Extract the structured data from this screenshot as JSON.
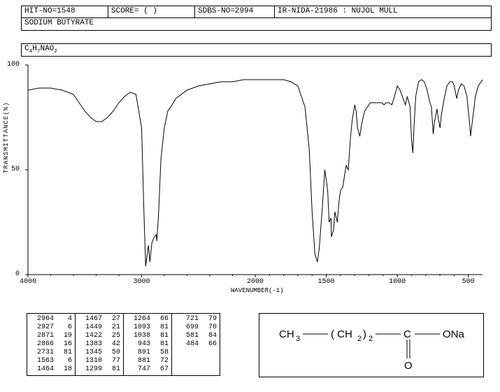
{
  "header": {
    "hit_no": "HIT-NO=1548",
    "score": "SCORE=   (   )",
    "sdbs": "SDBS-NO=2994",
    "ir": "IR-NIDA-21986 : NUJOL MULL"
  },
  "compound_name": "SODIUM BUTYRATE",
  "formula_html": "C<sub>4</sub>H<sub>7</sub>NAO<sub>2</sub>",
  "chart": {
    "type": "line",
    "background_color": "#ffffff",
    "line_color": "#000000",
    "line_width": 1,
    "xlabel": "WAVENUMBER(-1)",
    "ylabel": "TRANSMITTANCE(%)",
    "xlim": [
      4000,
      400
    ],
    "ylim": [
      0,
      100
    ],
    "xticks": [
      4000,
      3000,
      2000,
      1500,
      1000,
      500
    ],
    "yticks": [
      0,
      50,
      100
    ],
    "tick_fontsize": 10,
    "label_fontsize": 9,
    "spectrum": [
      [
        4000,
        88
      ],
      [
        3900,
        89
      ],
      [
        3800,
        89
      ],
      [
        3700,
        88
      ],
      [
        3600,
        86
      ],
      [
        3550,
        82
      ],
      [
        3500,
        78
      ],
      [
        3450,
        75
      ],
      [
        3400,
        73
      ],
      [
        3350,
        73
      ],
      [
        3300,
        75
      ],
      [
        3250,
        78
      ],
      [
        3200,
        82
      ],
      [
        3150,
        85
      ],
      [
        3100,
        87
      ],
      [
        3050,
        86
      ],
      [
        3000,
        70
      ],
      [
        2980,
        30
      ],
      [
        2964,
        4
      ],
      [
        2950,
        10
      ],
      [
        2940,
        14
      ],
      [
        2927,
        6
      ],
      [
        2910,
        15
      ],
      [
        2890,
        18
      ],
      [
        2871,
        19
      ],
      [
        2866,
        16
      ],
      [
        2850,
        30
      ],
      [
        2830,
        55
      ],
      [
        2800,
        70
      ],
      [
        2770,
        78
      ],
      [
        2731,
        81
      ],
      [
        2700,
        84
      ],
      [
        2600,
        88
      ],
      [
        2500,
        90
      ],
      [
        2400,
        91
      ],
      [
        2300,
        92
      ],
      [
        2200,
        92
      ],
      [
        2100,
        93
      ],
      [
        2000,
        93
      ],
      [
        1900,
        93
      ],
      [
        1800,
        93
      ],
      [
        1750,
        92
      ],
      [
        1700,
        90
      ],
      [
        1650,
        80
      ],
      [
        1620,
        60
      ],
      [
        1600,
        30
      ],
      [
        1580,
        10
      ],
      [
        1563,
        6
      ],
      [
        1550,
        12
      ],
      [
        1530,
        30
      ],
      [
        1510,
        50
      ],
      [
        1490,
        40
      ],
      [
        1480,
        25
      ],
      [
        1467,
        27
      ],
      [
        1464,
        18
      ],
      [
        1455,
        20
      ],
      [
        1449,
        21
      ],
      [
        1440,
        30
      ],
      [
        1422,
        25
      ],
      [
        1410,
        35
      ],
      [
        1400,
        40
      ],
      [
        1383,
        42
      ],
      [
        1370,
        48
      ],
      [
        1360,
        52
      ],
      [
        1345,
        50
      ],
      [
        1330,
        65
      ],
      [
        1320,
        72
      ],
      [
        1310,
        77
      ],
      [
        1299,
        81
      ],
      [
        1290,
        78
      ],
      [
        1280,
        70
      ],
      [
        1264,
        66
      ],
      [
        1250,
        72
      ],
      [
        1230,
        78
      ],
      [
        1210,
        80
      ],
      [
        1190,
        82
      ],
      [
        1170,
        82
      ],
      [
        1150,
        82
      ],
      [
        1130,
        82
      ],
      [
        1110,
        82
      ],
      [
        1093,
        81
      ],
      [
        1080,
        82
      ],
      [
        1060,
        82
      ],
      [
        1038,
        81
      ],
      [
        1020,
        85
      ],
      [
        1000,
        90
      ],
      [
        980,
        88
      ],
      [
        960,
        84
      ],
      [
        943,
        81
      ],
      [
        930,
        85
      ],
      [
        910,
        80
      ],
      [
        900,
        65
      ],
      [
        891,
        58
      ],
      [
        881,
        72
      ],
      [
        870,
        85
      ],
      [
        850,
        92
      ],
      [
        830,
        93
      ],
      [
        810,
        92
      ],
      [
        790,
        88
      ],
      [
        770,
        82
      ],
      [
        760,
        80
      ],
      [
        747,
        67
      ],
      [
        740,
        72
      ],
      [
        721,
        79
      ],
      [
        710,
        74
      ],
      [
        699,
        70
      ],
      [
        690,
        76
      ],
      [
        670,
        84
      ],
      [
        650,
        90
      ],
      [
        630,
        92
      ],
      [
        610,
        92
      ],
      [
        600,
        90
      ],
      [
        581,
        84
      ],
      [
        570,
        88
      ],
      [
        550,
        91
      ],
      [
        530,
        90
      ],
      [
        510,
        85
      ],
      [
        500,
        78
      ],
      [
        490,
        72
      ],
      [
        484,
        66
      ],
      [
        470,
        74
      ],
      [
        450,
        85
      ],
      [
        430,
        90
      ],
      [
        410,
        92
      ],
      [
        400,
        93
      ]
    ]
  },
  "peak_table": {
    "columns": 4,
    "font_size": 10,
    "data": [
      [
        [
          2964,
          4
        ],
        [
          2927,
          6
        ],
        [
          2871,
          19
        ],
        [
          2866,
          16
        ],
        [
          2731,
          81
        ],
        [
          1563,
          6
        ],
        [
          1464,
          18
        ]
      ],
      [
        [
          1467,
          27
        ],
        [
          1449,
          21
        ],
        [
          1422,
          25
        ],
        [
          1383,
          42
        ],
        [
          1345,
          50
        ],
        [
          1310,
          77
        ],
        [
          1299,
          81
        ]
      ],
      [
        [
          1264,
          66
        ],
        [
          1093,
          81
        ],
        [
          1038,
          81
        ],
        [
          943,
          81
        ],
        [
          891,
          58
        ],
        [
          881,
          72
        ],
        [
          747,
          67
        ]
      ],
      [
        [
          721,
          79
        ],
        [
          699,
          70
        ],
        [
          581,
          84
        ],
        [
          484,
          66
        ]
      ]
    ]
  },
  "structure": {
    "text_parts": [
      "CH",
      "3",
      "( CH",
      "2",
      ")",
      "2",
      "C",
      "ONa",
      "O"
    ],
    "font_size": 15,
    "line_color": "#000000"
  }
}
